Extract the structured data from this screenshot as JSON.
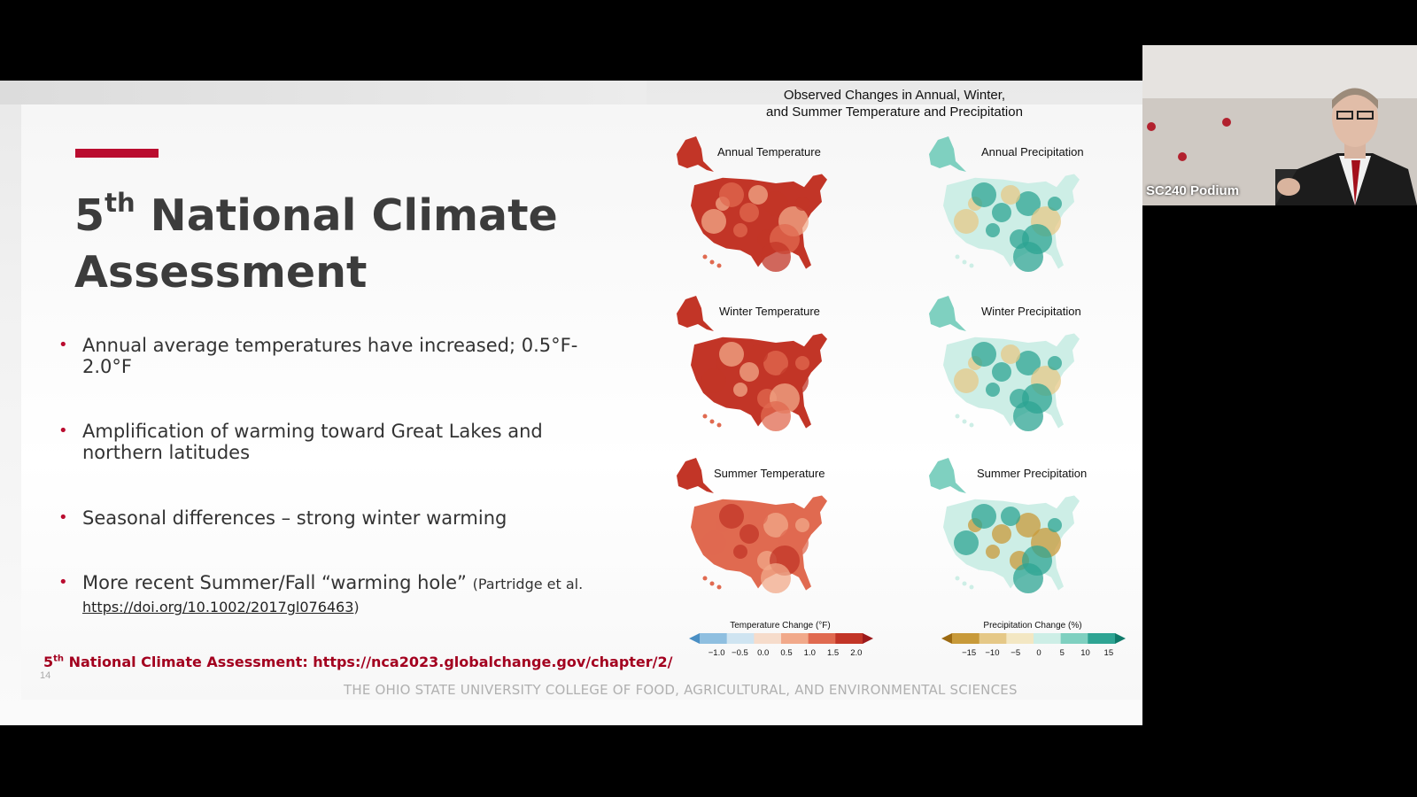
{
  "slide": {
    "title_prefix": "5",
    "title_sup": "th",
    "title_rest": " National Climate Assessment",
    "bullets": [
      {
        "text": "Annual average temperatures have increased; 0.5°F-2.0°F"
      },
      {
        "text": "Amplification of warming toward Great Lakes and northern latitudes"
      },
      {
        "text": "Seasonal differences – strong winter warming"
      },
      {
        "text": "More recent Summer/Fall “warming hole” ",
        "cite": "(Partridge et al.",
        "link": "https://doi.org/10.1002/2017gl076463",
        "cite_end": ")"
      }
    ],
    "source_prefix": "5",
    "source_sup": "th",
    "source_rest": " National Climate Assessment: https://nca2023.globalchange.gov/chapter/2/",
    "page_number": "14",
    "footer": "THE OHIO STATE UNIVERSITY COLLEGE OF FOOD, AGRICULTURAL, AND ENVIRONMENTAL SCIENCES"
  },
  "figure": {
    "title_line1": "Observed Changes in Annual, Winter,",
    "title_line2": "and Summer Temperature and Precipitation",
    "panels": [
      {
        "label": "Annual Temperature",
        "kind": "temp"
      },
      {
        "label": "Annual Precipitation",
        "kind": "precip"
      },
      {
        "label": "Winter Temperature",
        "kind": "temp"
      },
      {
        "label": "Winter Precipitation",
        "kind": "precip"
      },
      {
        "label": "Summer Temperature",
        "kind": "temp"
      },
      {
        "label": "Summer Precipitation",
        "kind": "precip"
      }
    ],
    "temp_legend": {
      "title": "Temperature Change (°F)",
      "ticks": [
        "−1.0",
        "−0.5",
        "0.0",
        "0.5",
        "1.0",
        "1.5",
        "2.0"
      ],
      "colors": [
        "#4a8fc4",
        "#8fbfe0",
        "#cfe4f1",
        "#f6dccb",
        "#f1a98a",
        "#e06a50",
        "#c23527",
        "#9c1a1c"
      ]
    },
    "precip_legend": {
      "title": "Precipitation Change (%)",
      "ticks": [
        "−15",
        "−10",
        "−5",
        "0",
        "5",
        "10",
        "15"
      ],
      "colors": [
        "#9c6a12",
        "#c89a3a",
        "#e5c887",
        "#f3e7c3",
        "#cdeee6",
        "#7fd0c0",
        "#2ea493",
        "#0f7a6a"
      ]
    }
  },
  "webcam": {
    "label": "SC240 Podium"
  }
}
